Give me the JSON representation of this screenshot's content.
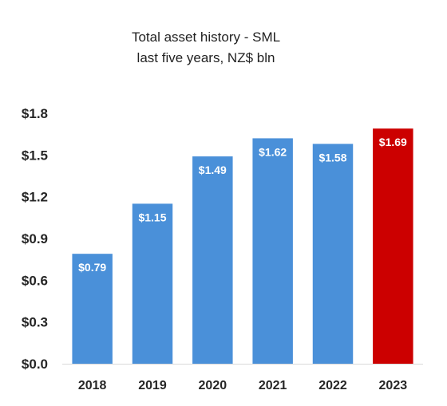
{
  "chart_data": {
    "type": "bar",
    "title": "Total asset history - SML",
    "subtitle": "last five years, NZ$ bln",
    "categories": [
      "2018",
      "2019",
      "2020",
      "2021",
      "2022",
      "2023"
    ],
    "values": [
      0.79,
      1.15,
      1.49,
      1.62,
      1.58,
      1.69
    ],
    "data_labels": [
      "$0.79",
      "$1.15",
      "$1.49",
      "$1.62",
      "$1.58",
      "$1.69"
    ],
    "ylim": [
      0,
      1.8
    ],
    "yticks": [
      0,
      0.3,
      0.6,
      0.9,
      1.2,
      1.5,
      1.8
    ],
    "ytick_labels": [
      "$0.0",
      "$0.3",
      "$0.6",
      "$0.9",
      "$1.2",
      "$1.5",
      "$1.8"
    ],
    "xlabel": "",
    "ylabel": "",
    "grid": false,
    "legend": "none",
    "colors": {
      "default_bar": "#4a90d9",
      "highlight_bar": "#cc0000",
      "highlight_category": "2023"
    }
  }
}
